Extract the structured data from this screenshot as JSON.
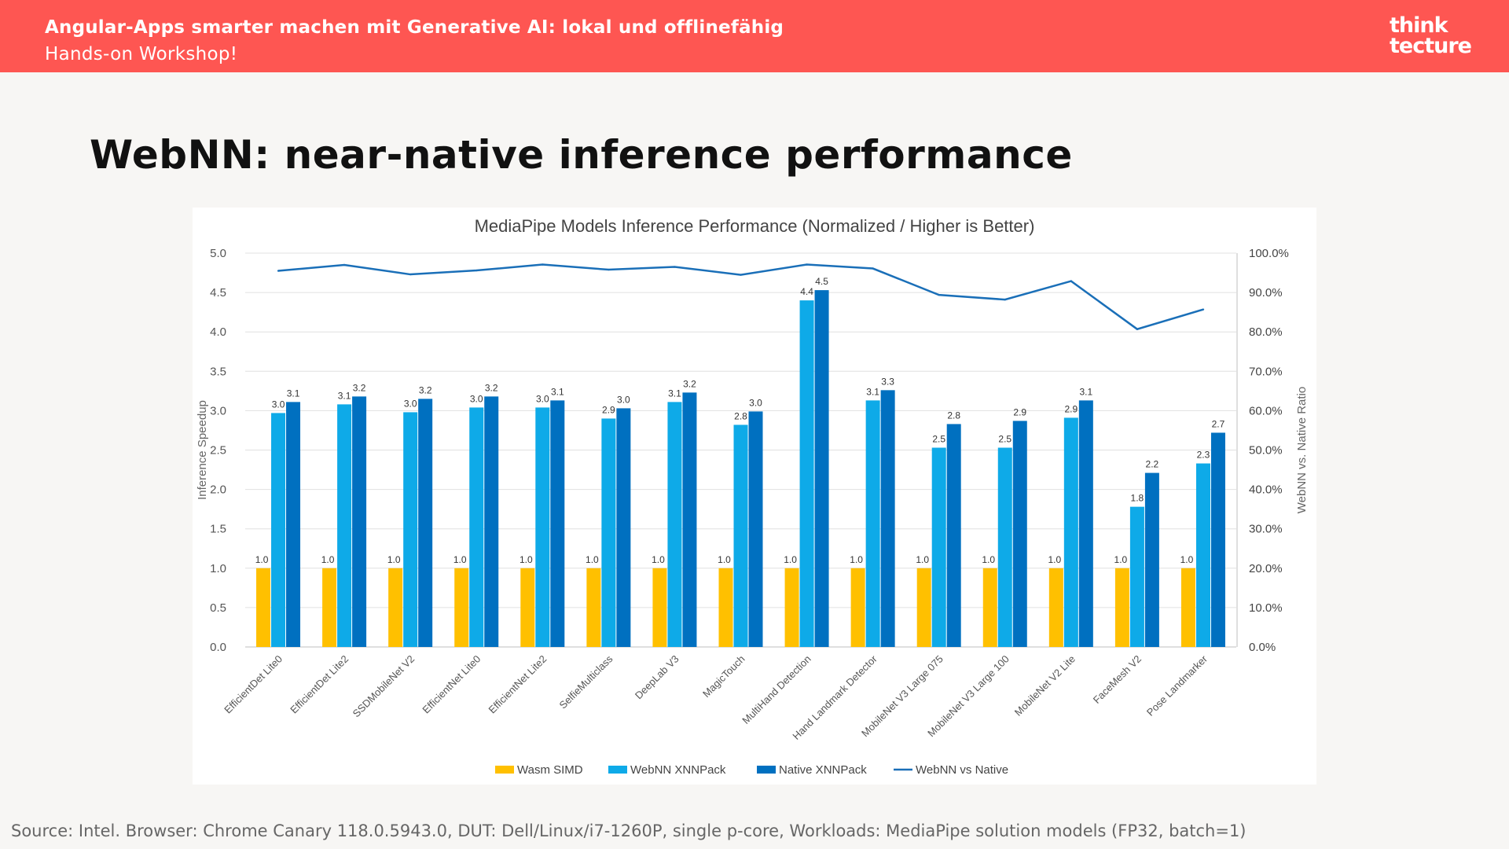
{
  "header": {
    "title": "Angular-Apps smarter machen mit Generative AI: lokal und offlinefähig",
    "subtitle": "Hands-on Workshop!",
    "logo_line1": "think",
    "logo_line2": "tecture",
    "background_color": "#fe5652"
  },
  "slide": {
    "title": "WebNN: near-native inference performance",
    "source": "Source: Intel. Browser: Chrome Canary 118.0.5943.0, DUT: Dell/Linux/i7-1260P, single p-core, Workloads: MediaPipe solution models (FP32, batch=1)"
  },
  "chart_data": {
    "type": "bar",
    "title": "MediaPipe Models Inference Performance (Normalized / Higher is Better)",
    "ylabel": "Inference Speedup",
    "y2label": "WebNN vs. Native Ratio",
    "ylim": [
      0,
      5
    ],
    "y_ticks": [
      "0.0",
      "0.5",
      "1.0",
      "1.5",
      "2.0",
      "2.5",
      "3.0",
      "3.5",
      "4.0",
      "4.5",
      "5.0"
    ],
    "y2lim": [
      0,
      100
    ],
    "y2_ticks": [
      "0.0%",
      "10.0%",
      "20.0%",
      "30.0%",
      "40.0%",
      "50.0%",
      "60.0%",
      "70.0%",
      "80.0%",
      "90.0%",
      "100.0%"
    ],
    "grid": true,
    "legend_position": "bottom",
    "categories": [
      "EfficientDet Lite0",
      "EfficientDet Lite2",
      "SSDMobileNet V2",
      "EfficientNet Lite0",
      "EfficientNet Lite2",
      "SelfieMulticlass",
      "DeepLab V3",
      "MagicTouch",
      "MultiHand Detection",
      "Hand Landmark Detector",
      "MobileNet V3 Large 075",
      "MobileNet V3 Large 100",
      "MobileNet V2 Lite",
      "FaceMesh V2",
      "Pose Landmarker"
    ],
    "series": [
      {
        "name": "Wasm SIMD",
        "color": "#ffc000",
        "values": [
          1.0,
          1.0,
          1.0,
          1.0,
          1.0,
          1.0,
          1.0,
          1.0,
          1.0,
          1.0,
          1.0,
          1.0,
          1.0,
          1.0,
          1.0
        ],
        "labels": [
          "1.0",
          "1.0",
          "1.0",
          "1.0",
          "1.0",
          "1.0",
          "1.0",
          "1.0",
          "1.0",
          "1.0",
          "1.0",
          "1.0",
          "1.0",
          "1.0",
          "1.0"
        ]
      },
      {
        "name": "WebNN XNNPack",
        "color": "#0eaae8",
        "values": [
          2.97,
          3.08,
          2.98,
          3.04,
          3.04,
          2.9,
          3.11,
          2.82,
          4.4,
          3.13,
          2.53,
          2.53,
          2.91,
          1.78,
          2.33
        ],
        "labels": [
          "3.0",
          "3.1",
          "3.0",
          "3.0",
          "3.0",
          "2.9",
          "3.1",
          "2.8",
          "4.4",
          "3.1",
          "2.5",
          "2.5",
          "2.9",
          "1.8",
          "2.3"
        ]
      },
      {
        "name": "Native XNNPack",
        "color": "#0070c0",
        "values": [
          3.11,
          3.18,
          3.15,
          3.18,
          3.13,
          3.03,
          3.23,
          2.99,
          4.53,
          3.26,
          2.83,
          2.87,
          3.13,
          2.21,
          2.72
        ],
        "labels": [
          "3.1",
          "3.2",
          "3.2",
          "3.2",
          "3.1",
          "3.0",
          "3.2",
          "3.0",
          "4.5",
          "3.3",
          "2.8",
          "2.9",
          "3.1",
          "2.2",
          "2.7"
        ]
      }
    ],
    "line_series": {
      "name": "WebNN vs Native",
      "color": "#1a6fb8",
      "axis": "secondary",
      "values": [
        95.5,
        97.0,
        94.6,
        95.6,
        97.1,
        95.8,
        96.5,
        94.5,
        97.1,
        96.1,
        89.4,
        88.2,
        92.9,
        80.7,
        85.7
      ]
    }
  }
}
